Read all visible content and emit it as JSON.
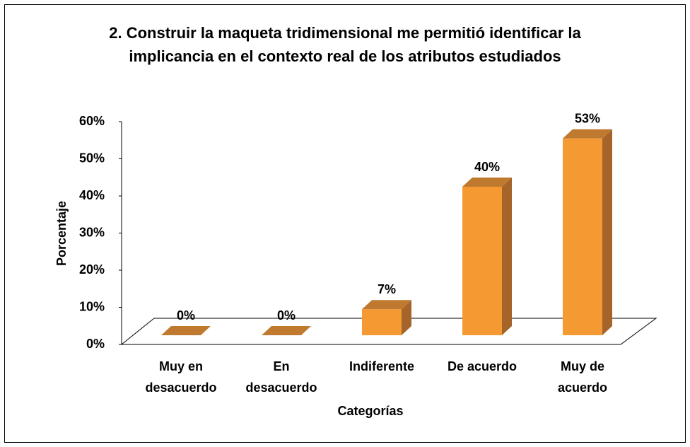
{
  "chart_data": {
    "type": "bar3d",
    "title": "2. Construir la maqueta tridimensional me permitió identificar la implicancia en el contexto real de los atributos estudiados",
    "categories": [
      "Muy en desacuerdo",
      "En desacuerdo",
      "Indiferente",
      "De acuerdo",
      "Muy de acuerdo"
    ],
    "values": [
      0,
      0,
      7,
      40,
      53
    ],
    "value_labels": [
      "0%",
      "0%",
      "7%",
      "40%",
      "53%"
    ],
    "color": "#f59a33",
    "ylim": [
      0,
      60
    ],
    "yticks": [
      {
        "value": 0,
        "label": "0%"
      },
      {
        "value": 10,
        "label": "10%"
      },
      {
        "value": 20,
        "label": "20%"
      },
      {
        "value": 30,
        "label": "30%"
      },
      {
        "value": 40,
        "label": "40%"
      },
      {
        "value": 50,
        "label": "50%"
      },
      {
        "value": 60,
        "label": "60%"
      }
    ],
    "ylabel": "Porcentaje",
    "xlabel": "Categorías"
  }
}
